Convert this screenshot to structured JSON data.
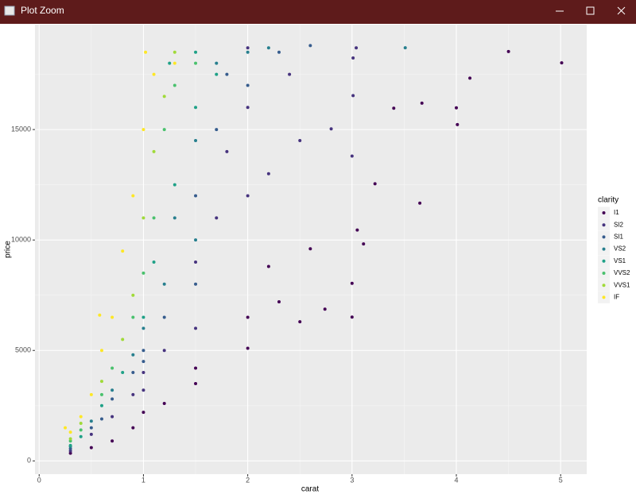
{
  "window": {
    "title": "Plot Zoom"
  },
  "chart_data": {
    "type": "scatter",
    "x_label": "carat",
    "y_label": "price",
    "xlim": [
      -0.04,
      5.25
    ],
    "ylim": [
      -600,
      19750
    ],
    "xticks": [
      0,
      1,
      2,
      3,
      4,
      5
    ],
    "yticks": [
      0,
      5000,
      10000,
      15000
    ],
    "xminor": [
      0.5,
      1.5,
      2.5,
      3.5,
      4.5
    ],
    "yminor": [
      2500,
      7500,
      12500,
      17500
    ],
    "grid": true,
    "legend_title": "clarity",
    "legend": "right",
    "series": [
      {
        "name": "I1",
        "color": "#440154",
        "x": [
          5.01,
          4.5,
          4.13,
          4.01,
          4.0,
          3.67,
          3.65,
          3.4,
          3.22,
          3.11,
          3.05,
          3.0,
          3.0,
          2.74,
          2.5,
          2.3,
          2.0,
          2.0,
          1.5,
          1.5,
          1.2,
          1.0,
          0.9,
          0.7,
          0.5,
          0.3,
          2.2,
          2.6
        ],
        "values": [
          18018,
          18531,
          17329,
          15223,
          15984,
          16193,
          11668,
          15964,
          12545,
          9823,
          10453,
          8040,
          6512,
          6870,
          6300,
          7200,
          5100,
          6500,
          3500,
          4200,
          2600,
          2200,
          1500,
          900,
          600,
          350,
          8800,
          9600
        ]
      },
      {
        "name": "SI2",
        "color": "#46337E",
        "x": [
          3.01,
          3.01,
          2.8,
          2.5,
          2.2,
          2.0,
          2.0,
          2.0,
          1.7,
          1.5,
          1.5,
          1.2,
          1.0,
          1.0,
          0.9,
          0.7,
          0.5,
          0.3,
          2.4,
          1.8,
          3.0,
          3.04
        ],
        "values": [
          18242,
          16538,
          15030,
          14500,
          13000,
          12000,
          16000,
          18700,
          11000,
          9000,
          6000,
          5000,
          4000,
          3200,
          3000,
          2000,
          1200,
          450,
          17500,
          14000,
          13800,
          18700
        ]
      },
      {
        "name": "SI1",
        "color": "#365C8D",
        "x": [
          2.0,
          1.7,
          1.5,
          1.5,
          1.2,
          1.0,
          1.0,
          0.9,
          0.7,
          0.5,
          0.3,
          2.3,
          2.6,
          1.8,
          0.6
        ],
        "values": [
          17000,
          15000,
          12000,
          8000,
          6500,
          5000,
          4500,
          4000,
          2800,
          1500,
          550,
          18500,
          18800,
          17500,
          1900
        ]
      },
      {
        "name": "VS2",
        "color": "#277F8E",
        "x": [
          3.51,
          2.0,
          1.7,
          1.5,
          1.5,
          1.2,
          1.0,
          0.9,
          0.7,
          0.5,
          0.3,
          1.3,
          2.2
        ],
        "values": [
          18701,
          18500,
          18000,
          14500,
          10000,
          8000,
          6000,
          4800,
          3200,
          1800,
          650,
          11000,
          18700
        ]
      },
      {
        "name": "VS1",
        "color": "#1FA187",
        "x": [
          1.7,
          1.5,
          1.3,
          1.1,
          1.0,
          0.8,
          0.6,
          0.4,
          0.3,
          1.5,
          1.25
        ],
        "values": [
          17500,
          16000,
          12500,
          9000,
          6500,
          4000,
          2500,
          1100,
          700,
          18500,
          18000
        ]
      },
      {
        "name": "VVS2",
        "color": "#4AC16D",
        "x": [
          1.5,
          1.2,
          1.1,
          1.0,
          0.9,
          0.7,
          0.6,
          0.4,
          0.3,
          1.3
        ],
        "values": [
          18000,
          15000,
          11000,
          8500,
          6500,
          4200,
          3000,
          1400,
          900,
          17000
        ]
      },
      {
        "name": "VVS1",
        "color": "#A0DA39",
        "x": [
          1.3,
          1.1,
          1.0,
          0.9,
          0.8,
          0.6,
          0.4,
          0.3,
          1.2
        ],
        "values": [
          18500,
          14000,
          11000,
          7500,
          5500,
          3600,
          1700,
          1000,
          16500
        ]
      },
      {
        "name": "IF",
        "color": "#FDE725",
        "x": [
          1.02,
          1.1,
          1.0,
          0.9,
          0.8,
          0.7,
          0.6,
          0.5,
          0.4,
          0.3,
          0.25,
          1.3,
          0.58
        ],
        "values": [
          18500,
          17500,
          15000,
          12000,
          9500,
          6500,
          5000,
          3000,
          2000,
          1300,
          1500,
          18000,
          6600
        ]
      }
    ]
  }
}
